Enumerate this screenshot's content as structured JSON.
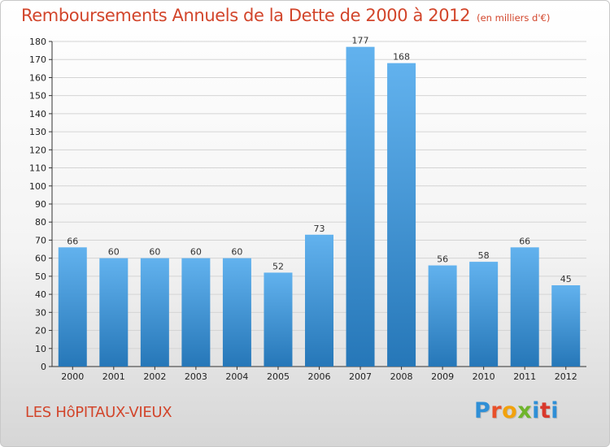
{
  "chart_data": {
    "type": "bar",
    "title": "Remboursements Annuels de la Dette de 2000 à 2012",
    "subtitle": "(en milliers d'€)",
    "categories": [
      "2000",
      "2001",
      "2002",
      "2003",
      "2004",
      "2005",
      "2006",
      "2007",
      "2008",
      "2009",
      "2010",
      "2011",
      "2012"
    ],
    "values": [
      66,
      60,
      60,
      60,
      60,
      52,
      73,
      177,
      168,
      56,
      58,
      66,
      45
    ],
    "ylim": [
      0,
      180
    ],
    "ytick_step": 10,
    "grid": true,
    "bar_color": "#4a9ee0",
    "bar_color_light": "#62b2ee",
    "bar_color_dark": "#2677b8",
    "data_labels": true
  },
  "footer": {
    "commune": "LES HôPITAUX-VIEUX",
    "logo_text": "Proxiti",
    "logo_colors": [
      "#2f8fd6",
      "#e8502a",
      "#f2a20d",
      "#6fb52c",
      "#2f8fd6",
      "#d9382b",
      "#2f8fd6"
    ]
  },
  "colors": {
    "title": "#d2452b",
    "grid": "#d4d4d4",
    "axis": "#333333"
  }
}
